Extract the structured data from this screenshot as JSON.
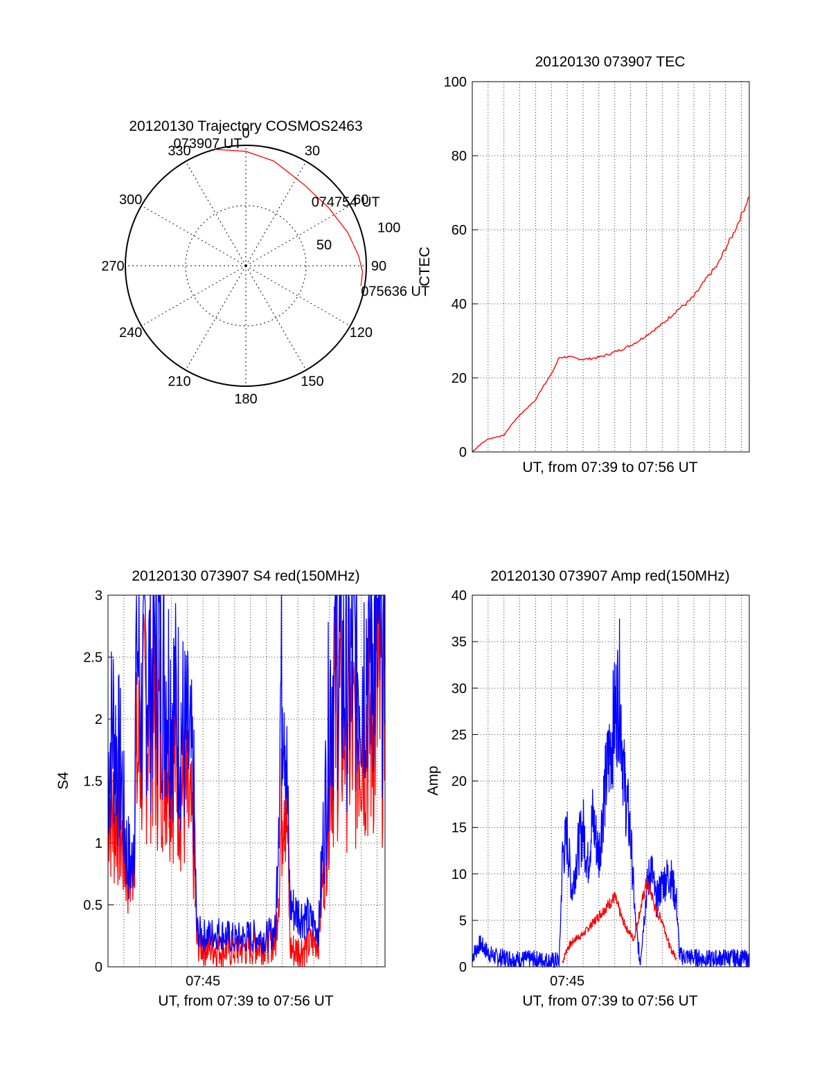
{
  "chart_data": [
    {
      "type": "polar",
      "title": "20120130 Trajectory COSMOS2463",
      "azimuth_labels": [
        "0",
        "30",
        "60",
        "90",
        "120",
        "150",
        "180",
        "210",
        "240",
        "270",
        "300",
        "330"
      ],
      "radial_labels": [
        "50",
        "100"
      ],
      "trajectory_color": "#ff0000",
      "trajectory": [
        {
          "az": 345,
          "r": 100
        },
        {
          "az": 0,
          "r": 95
        },
        {
          "az": 15,
          "r": 90
        },
        {
          "az": 35,
          "r": 83
        },
        {
          "az": 55,
          "r": 84
        },
        {
          "az": 72,
          "r": 89
        },
        {
          "az": 85,
          "r": 94
        },
        {
          "az": 93,
          "r": 97
        },
        {
          "az": 100,
          "r": 97
        }
      ],
      "annotations": [
        {
          "text": "073907 UT",
          "az": 345,
          "r": 100
        },
        {
          "text": "074754 UT",
          "az": 52,
          "r": 80
        },
        {
          "text": "075636 UT",
          "az": 100,
          "r": 97
        }
      ]
    },
    {
      "type": "line",
      "title": "20120130 073907 TEC",
      "xlabel": "UT, from 07:39 to 07:56 UT",
      "ylabel": "CTEC",
      "xlim": [
        0,
        17.5
      ],
      "ylim": [
        0,
        100
      ],
      "yticks": [
        0,
        20,
        40,
        60,
        80,
        100
      ],
      "grid": true,
      "color": "#ff0000",
      "series": [
        {
          "x": [
            0,
            0.5,
            1,
            1.5,
            2,
            2.5,
            3,
            3.5,
            4,
            4.5,
            5,
            5.5,
            6,
            6.5,
            7,
            7.5,
            8,
            8.5,
            9,
            9.5,
            10,
            10.5,
            11,
            11.5,
            12,
            12.5,
            13,
            13.5,
            14,
            14.5,
            15,
            15.5,
            16,
            16.5,
            17,
            17.5
          ],
          "y": [
            0,
            2,
            3.5,
            4,
            4.5,
            7.5,
            10,
            12,
            14,
            18,
            21,
            25.5,
            25.7,
            25.3,
            25,
            25.2,
            25.6,
            26.2,
            27,
            27.8,
            28.8,
            30,
            31.5,
            33,
            34.5,
            36.5,
            38.5,
            40,
            42,
            45,
            48,
            50.5,
            55,
            59,
            64,
            69
          ]
        }
      ]
    },
    {
      "type": "line",
      "title": "20120130 073907 S4 red(150MHz)",
      "xlabel": "UT, from 07:39 to 07:56 UT",
      "ylabel": "S4",
      "xlim": [
        0,
        17.5
      ],
      "ylim": [
        0,
        3
      ],
      "yticks": [
        0,
        0.5,
        1,
        1.5,
        2,
        2.5,
        3
      ],
      "ytick_labels": [
        "0",
        "0.5",
        "1",
        "1.5",
        "2",
        "2.5",
        "3"
      ],
      "xticks": [
        6
      ],
      "xtick_labels": [
        "07:45"
      ],
      "grid": true,
      "series": [
        {
          "color": "#0000ff",
          "x": [
            0,
            0.3,
            0.6,
            0.9,
            1.0,
            1.2,
            1.5,
            1.65,
            1.8,
            2.1,
            2.4,
            2.7,
            3,
            3.5,
            4.0,
            4.5,
            5.0,
            5.4,
            5.6,
            6,
            7,
            8,
            9,
            10,
            10.6,
            10.9,
            11.1,
            11.3,
            11.5,
            11.8,
            12.5,
            13.0,
            13.3,
            13.5,
            13.8,
            14,
            14.5,
            15,
            15.5,
            16,
            16.5,
            17,
            17.5
          ],
          "y": [
            1.6,
            2.0,
            1.7,
            1.5,
            1.2,
            0.9,
            0.8,
            1.2,
            2.8,
            2.0,
            2.5,
            2.3,
            2.7,
            2.4,
            2.2,
            2.0,
            1.8,
            1.5,
            0.3,
            0.25,
            0.28,
            0.22,
            0.25,
            0.24,
            0.3,
            2.2,
            2.6,
            1.5,
            0.5,
            0.45,
            0.4,
            0.35,
            0.3,
            0.8,
            1.5,
            2.2,
            2.6,
            2.3,
            2.5,
            2.4,
            2.7,
            2.6,
            2.5
          ]
        },
        {
          "color": "#ff0000",
          "x": [
            0,
            0.3,
            0.6,
            0.9,
            1.2,
            1.5,
            1.8,
            2.1,
            2.4,
            2.7,
            3,
            3.5,
            4.0,
            4.5,
            5.0,
            5.4,
            5.6,
            6,
            7,
            8,
            9,
            10,
            10.6,
            10.9,
            11.1,
            11.3,
            11.5,
            11.8,
            12.5,
            13.0,
            13.3,
            13.5,
            13.8,
            14,
            14.5,
            15,
            15.5,
            16,
            16.5,
            17,
            17.5
          ],
          "y": [
            1.5,
            1.2,
            1.3,
            1.0,
            0.8,
            0.7,
            1.6,
            1.8,
            2.0,
            2.1,
            1.9,
            1.9,
            1.8,
            1.6,
            1.3,
            1.0,
            0.2,
            0.16,
            0.15,
            0.14,
            0.16,
            0.18,
            0.2,
            1.0,
            1.7,
            1.3,
            0.15,
            0.13,
            0.16,
            0.2,
            0.22,
            0.6,
            1.2,
            1.8,
            2.1,
            2.0,
            1.8,
            2.0,
            1.9,
            2.1,
            2.0
          ]
        }
      ]
    },
    {
      "type": "line",
      "title": "20120130 073907 Amp red(150MHz)",
      "xlabel": "UT, from 07:39 to 07:56 UT",
      "ylabel": "Amp",
      "xlim": [
        0,
        17.5
      ],
      "ylim": [
        0,
        40
      ],
      "yticks": [
        0,
        5,
        10,
        15,
        20,
        25,
        30,
        35,
        40
      ],
      "xticks": [
        6
      ],
      "xtick_labels": [
        "07:45"
      ],
      "grid": true,
      "series": [
        {
          "color": "#0000ff",
          "x": [
            0,
            0.5,
            1,
            1.5,
            2,
            3,
            4,
            5,
            5.5,
            5.7,
            6,
            6.3,
            6.6,
            7,
            7.3,
            7.6,
            8,
            8.3,
            8.6,
            9,
            9.3,
            9.6,
            10,
            10.3,
            10.6,
            11,
            11.3,
            11.6,
            12,
            12.5,
            12.9,
            13.1,
            14,
            15,
            16,
            17,
            17.5
          ],
          "y": [
            1.2,
            2.5,
            1.5,
            1.0,
            1.0,
            0.8,
            0.8,
            0.6,
            0.7,
            12,
            14,
            8,
            12,
            15,
            11,
            16,
            12,
            18,
            22,
            27,
            30,
            20,
            14,
            5,
            0.5,
            8,
            11,
            7,
            9,
            10,
            7,
            1.2,
            1.0,
            0.8,
            1.0,
            0.9,
            0.8
          ]
        },
        {
          "color": "#ff0000",
          "x": [
            5.7,
            6,
            6.5,
            7,
            7.5,
            8,
            8.5,
            9,
            9.5,
            9.8,
            10.2,
            10.6,
            11,
            11.3,
            11.6,
            12,
            12.5,
            12.9
          ],
          "y": [
            0.5,
            2,
            3,
            3.5,
            4.5,
            5.5,
            6.5,
            7.5,
            5,
            4,
            3,
            6,
            9,
            8,
            6,
            5,
            2,
            1
          ]
        }
      ]
    }
  ]
}
